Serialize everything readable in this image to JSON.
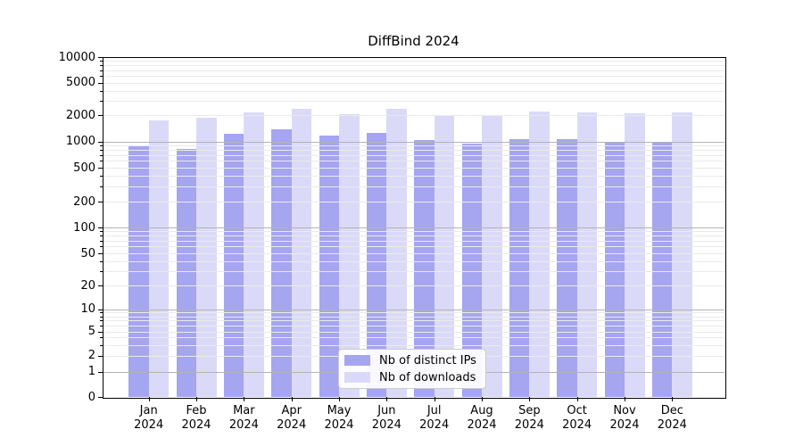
{
  "chart_data": {
    "type": "bar",
    "title": "DiffBind 2024",
    "categories": [
      {
        "month": "Jan",
        "year": "2024"
      },
      {
        "month": "Feb",
        "year": "2024"
      },
      {
        "month": "Mar",
        "year": "2024"
      },
      {
        "month": "Apr",
        "year": "2024"
      },
      {
        "month": "May",
        "year": "2024"
      },
      {
        "month": "Jun",
        "year": "2024"
      },
      {
        "month": "Jul",
        "year": "2024"
      },
      {
        "month": "Aug",
        "year": "2024"
      },
      {
        "month": "Sep",
        "year": "2024"
      },
      {
        "month": "Oct",
        "year": "2024"
      },
      {
        "month": "Nov",
        "year": "2024"
      },
      {
        "month": "Dec",
        "year": "2024"
      }
    ],
    "series": [
      {
        "name": "Nb of distinct IPs",
        "color": "#a5a5f0",
        "values": [
          880,
          820,
          1230,
          1390,
          1170,
          1250,
          1040,
          950,
          1070,
          1070,
          975,
          1000
        ]
      },
      {
        "name": "Nb of downloads",
        "color": "#dadaf8",
        "values": [
          1760,
          1860,
          2150,
          2400,
          2050,
          2400,
          2020,
          1990,
          2250,
          2200,
          2100,
          2200
        ]
      }
    ],
    "y_axis": {
      "scale": "symlog",
      "range": [
        0,
        10000
      ],
      "ticks": [
        10000,
        5000,
        2000,
        1000,
        500,
        200,
        100,
        50,
        20,
        10,
        5,
        2,
        1,
        0
      ]
    },
    "x_axis": {
      "tick_count": 12
    },
    "grid": {
      "on": true,
      "major_values": [
        1,
        10,
        100,
        1000
      ],
      "major_color": "#b3b3b3",
      "minor_color": "#eaeaea"
    },
    "legend": {
      "position": "lower-center",
      "entries": [
        "Nb of distinct IPs",
        "Nb of downloads"
      ]
    }
  }
}
